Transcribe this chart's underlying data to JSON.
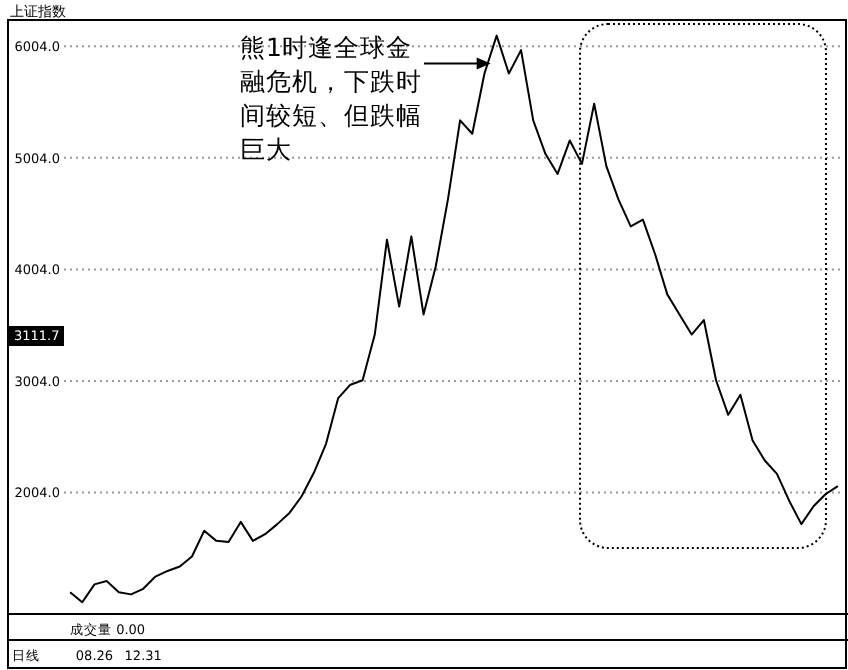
{
  "chart_data": {
    "type": "line",
    "title": "上证指数",
    "categories": [
      null,
      null,
      "08.26",
      null,
      null,
      null,
      "12.31",
      null,
      null,
      null,
      null,
      null,
      null,
      null,
      null,
      null,
      null,
      null,
      null,
      null,
      null,
      null,
      null,
      null,
      null,
      null,
      null,
      null,
      null,
      null,
      null,
      null,
      null,
      null,
      null,
      null,
      null,
      null,
      null,
      null,
      null,
      null,
      null,
      null,
      null,
      null,
      null,
      null,
      null,
      null,
      null,
      null,
      null,
      null,
      null,
      null,
      null,
      null,
      null,
      null,
      null,
      null,
      null,
      null
    ],
    "series": [
      {
        "color": "#000000",
        "values": [
          1110,
          1020,
          1180,
          1210,
          1110,
          1090,
          1140,
          1250,
          1300,
          1340,
          1430,
          1660,
          1570,
          1560,
          1740,
          1570,
          1630,
          1720,
          1820,
          1970,
          2180,
          2440,
          2850,
          2970,
          3010,
          3420,
          4270,
          3670,
          4300,
          3600,
          4030,
          4630,
          5340,
          5220,
          5760,
          6100,
          5760,
          5970,
          5340,
          5040,
          4860,
          5160,
          4950,
          5490,
          4930,
          4630,
          4390,
          4450,
          4140,
          3780,
          3600,
          3420,
          3550,
          3010,
          2700,
          2880,
          2470,
          2290,
          2170,
          1930,
          1720,
          1880,
          1990,
          2060
        ]
      }
    ],
    "ylim": [
      950,
      6240
    ],
    "yticks": [
      {
        "value": 2004,
        "label": "2004.0"
      },
      {
        "value": 3004,
        "label": "3004.0"
      },
      {
        "value": 4004,
        "label": "4004.0"
      },
      {
        "value": 5004,
        "label": "5004.0"
      },
      {
        "value": 6004,
        "label": "6004.0"
      }
    ],
    "grid": "y",
    "marker": "none",
    "line_style": "solid",
    "annotations": [
      "熊1时逢全球金融危机，下跌时间较短、但跌幅巨大",
      "3111.7",
      "成交量  0.00",
      "日线"
    ]
  }
}
